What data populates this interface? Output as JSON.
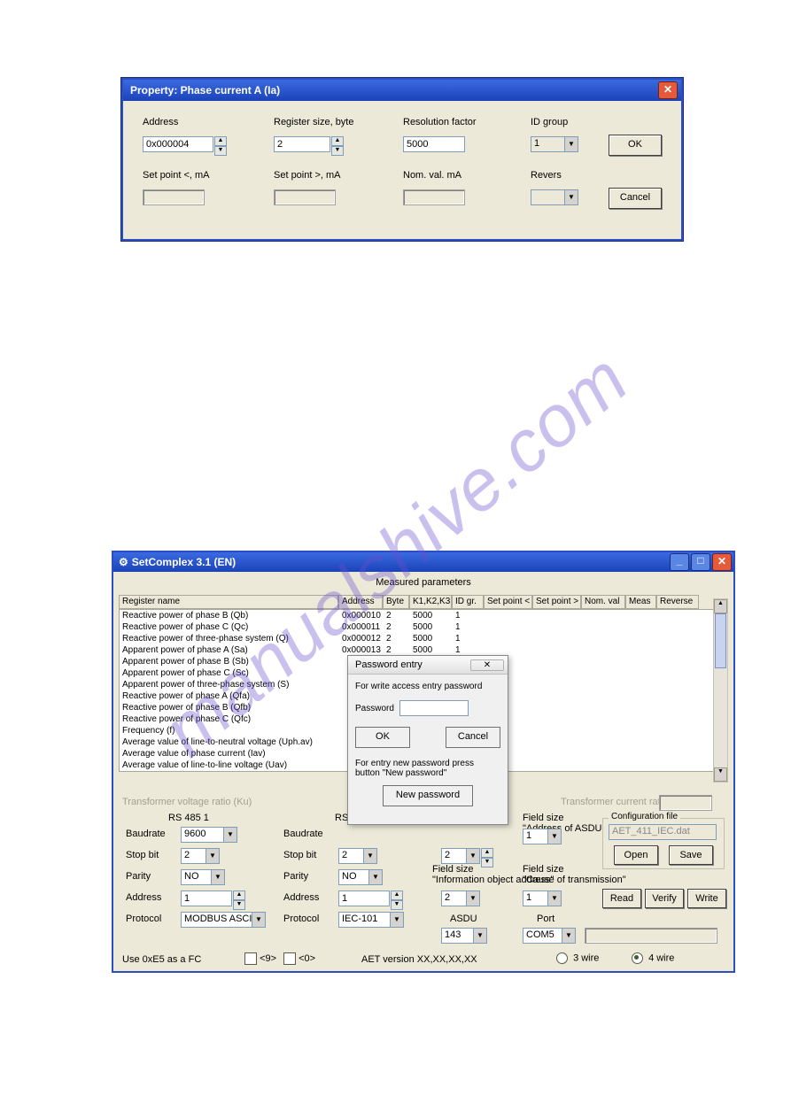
{
  "colors": {
    "xp_blue_dark": "#1b43b8",
    "xp_blue_light": "#3b6ae0",
    "window_bg": "#ece9d8",
    "border": "#7f9db9",
    "close_red": "#e45a3a",
    "watermark": "#6a4ed0"
  },
  "watermark_text": "manualshive.com",
  "dialog1": {
    "title": "Property: Phase current A (Ia)",
    "labels": {
      "address": "Address",
      "regsize": "Register size, byte",
      "resfactor": "Resolution factor",
      "idgroup": "ID group",
      "setpoint_lt": "Set point <, mA",
      "setpoint_gt": "Set point >, mA",
      "nomval": "Nom. val. mA",
      "revers": "Revers"
    },
    "values": {
      "address": "0x000004",
      "regsize": "2",
      "resfactor": "5000",
      "idgroup": "1"
    },
    "buttons": {
      "ok": "OK",
      "cancel": "Cancel"
    }
  },
  "window2": {
    "title": "SetComplex 3.1 (EN)",
    "section_measured": "Measured parameters",
    "columns": {
      "regname": "Register name",
      "address": "Address",
      "byte": "Byte",
      "k123": "K1,K2,K3",
      "idgr": "ID gr.",
      "setlt": "Set point <",
      "setgt": "Set point >",
      "nomval": "Nom. val",
      "meas": "Meas",
      "reverse": "Reverse"
    },
    "col_widths": {
      "regname": 248,
      "address": 50,
      "byte": 30,
      "k123": 48,
      "idgr": 36,
      "setlt": 55,
      "setgt": 55,
      "nomval": 50,
      "meas": 35,
      "reverse": 48
    },
    "rows": [
      {
        "name": "Reactive power of phase B (Qb)",
        "addr": "0x000010",
        "byte": "2",
        "k": "5000",
        "id": "1"
      },
      {
        "name": "Reactive power of phase C (Qc)",
        "addr": "0x000011",
        "byte": "2",
        "k": "5000",
        "id": "1"
      },
      {
        "name": "Reactive power of three-phase system (Q)",
        "addr": "0x000012",
        "byte": "2",
        "k": "5000",
        "id": "1"
      },
      {
        "name": "Apparent power of phase A (Sa)",
        "addr": "0x000013",
        "byte": "2",
        "k": "5000",
        "id": "1"
      },
      {
        "name": "Apparent power of phase B (Sb)",
        "addr": "",
        "byte": "",
        "k": "",
        "id": ""
      },
      {
        "name": "Apparent power of phase C (Sc)",
        "addr": "",
        "byte": "",
        "k": "",
        "id": ""
      },
      {
        "name": "Apparent power of three-phase system (S)",
        "addr": "",
        "byte": "",
        "k": "",
        "id": ""
      },
      {
        "name": "Reactive power of phase A (Qfa)",
        "addr": "",
        "byte": "",
        "k": "",
        "id": ""
      },
      {
        "name": "Reactive power of phase B (Qfb)",
        "addr": "",
        "byte": "",
        "k": "",
        "id": ""
      },
      {
        "name": "Reactive power of phase C (Qfc)",
        "addr": "",
        "byte": "",
        "k": "",
        "id": ""
      },
      {
        "name": "Frequency (f)",
        "addr": "",
        "byte": "",
        "k": "",
        "id": ""
      },
      {
        "name": "Average value of line-to-neutral voltage (Uph.av)",
        "addr": "",
        "byte": "",
        "k": "",
        "id": ""
      },
      {
        "name": "Average value of phase current (Iav)",
        "addr": "",
        "byte": "",
        "k": "",
        "id": ""
      },
      {
        "name": "Average value of line-to-line voltage (Uav)",
        "addr": "",
        "byte": "",
        "k": "",
        "id": ""
      }
    ],
    "grey_labels": {
      "tvr": "Transformer voltage ratio (Ku)",
      "tcr": "Transformer current ratio (Ki)"
    },
    "rs485_1": {
      "title": "RS 485 1",
      "baud_label": "Baudrate",
      "baud": "9600",
      "stop_label": "Stop bit",
      "stop": "2",
      "parity_label": "Parity",
      "parity": "NO",
      "addr_label": "Address",
      "addr": "1",
      "proto_label": "Protocol",
      "proto": "MODBUS ASCII"
    },
    "rs485_2": {
      "title": "RS",
      "baud_label": "Baudrate",
      "baud": "",
      "stop_label": "Stop bit",
      "stop": "2",
      "parity_label": "Parity",
      "parity": "NO",
      "addr_label": "Address",
      "addr": "1",
      "proto_label": "Protocol",
      "proto": "IEC-101"
    },
    "iec": {
      "fsize_asdu_label": "Field size\n\"Address of ASDU\"",
      "fsize_asdu": "2",
      "fsize_io_label": "Field size\n\"Information object address\"",
      "fsize_io": "2",
      "fsize_id1": "1",
      "fsize_cause_label": "Field size\n\"Cause of transmission\"",
      "fsize_cause": "1",
      "asdu_label": "ASDU",
      "asdu": "143",
      "port_label": "Port",
      "port": "COM5"
    },
    "config": {
      "title": "Configuration file",
      "path": "AET_411_IEC.dat",
      "open": "Open",
      "save": "Save",
      "read": "Read",
      "verify": "Verify",
      "write": "Write"
    },
    "footer": {
      "use0xe5": "Use 0xE5 as a FC",
      "chk9": "<9>",
      "chk0": "<0>",
      "aet": "AET version XX,XX,XX,XX",
      "wire3": "3 wire",
      "wire4": "4 wire"
    }
  },
  "pwddlg": {
    "title": "Password entry",
    "msg1": "For write access entry password",
    "pwd_label": "Password",
    "ok": "OK",
    "cancel": "Cancel",
    "msg2": "For entry new password press button \"New password\"",
    "newpwd": "New password",
    "close_glyph": "✕"
  }
}
